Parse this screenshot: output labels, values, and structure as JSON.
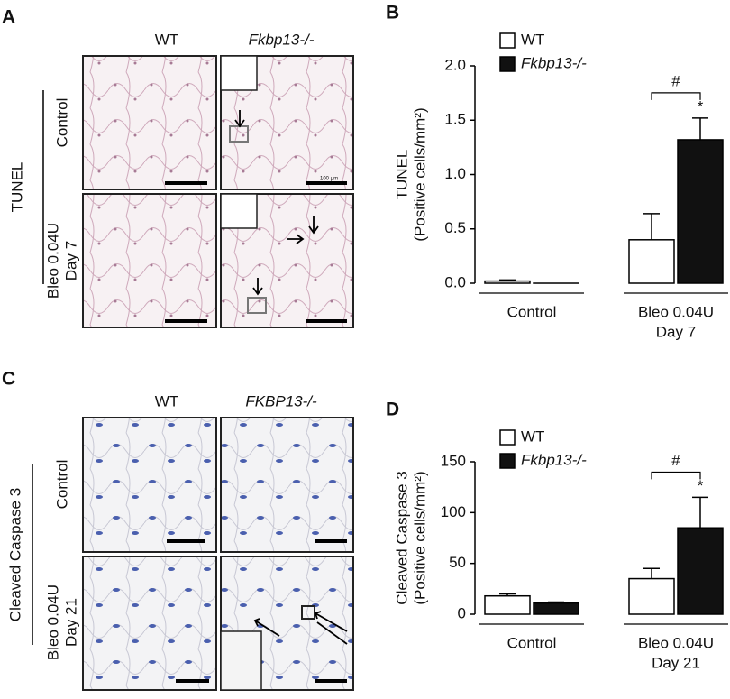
{
  "figure_a": {
    "letter": "A",
    "columns": [
      "WT",
      "Fkbp13-/-"
    ],
    "stain": "TUNEL",
    "rows": [
      [
        "Control"
      ],
      [
        "Bleo 0.04U",
        "Day 7"
      ]
    ],
    "scale_label": "100 μm"
  },
  "figure_c": {
    "letter": "C",
    "columns": [
      "WT",
      "FKBP13-/-"
    ],
    "stain": "Cleaved Caspase 3",
    "rows": [
      [
        "Control"
      ],
      [
        "Bleo 0.04U",
        "Day 21"
      ]
    ]
  },
  "chart_data": [
    {
      "type": "bar",
      "letter": "B",
      "ylabel": [
        "TUNEL",
        "(Positive cells/mm²)"
      ],
      "categories": [
        [
          "Control"
        ],
        [
          "Bleo 0.04U",
          "Day 7"
        ]
      ],
      "series": [
        {
          "name": "WT",
          "color": "#ffffff",
          "values": [
            0.02,
            0.4
          ],
          "errors": [
            0.01,
            0.24
          ]
        },
        {
          "name": "Fkbp13-/-",
          "color": "#111111",
          "values": [
            0,
            1.32
          ],
          "errors": [
            0,
            0.2
          ]
        }
      ],
      "ylim": [
        0,
        2
      ],
      "yticks": [
        {
          "value": 0,
          "label": "0.0"
        },
        {
          "value": 0.5,
          "label": "0.5"
        },
        {
          "value": 1,
          "label": "1.0"
        },
        {
          "value": 1.5,
          "label": "1.5"
        },
        {
          "value": 2,
          "label": "2.0"
        }
      ],
      "annotations": [
        "#",
        "*"
      ]
    },
    {
      "type": "bar",
      "letter": "D",
      "ylabel": [
        "Cleaved Caspase 3",
        "(Positive cells/mm²)"
      ],
      "categories": [
        [
          "Control"
        ],
        [
          "Bleo 0.04U",
          "Day 21"
        ]
      ],
      "series": [
        {
          "name": "WT",
          "color": "#ffffff",
          "values": [
            18,
            35
          ],
          "errors": [
            2,
            10
          ]
        },
        {
          "name": "Fkbp13-/-",
          "color": "#111111",
          "values": [
            11,
            85
          ],
          "errors": [
            1,
            30
          ]
        }
      ],
      "ylim": [
        0,
        150
      ],
      "yticks": [
        0,
        50,
        100,
        150
      ],
      "annotations": [
        "#",
        "*"
      ]
    }
  ]
}
